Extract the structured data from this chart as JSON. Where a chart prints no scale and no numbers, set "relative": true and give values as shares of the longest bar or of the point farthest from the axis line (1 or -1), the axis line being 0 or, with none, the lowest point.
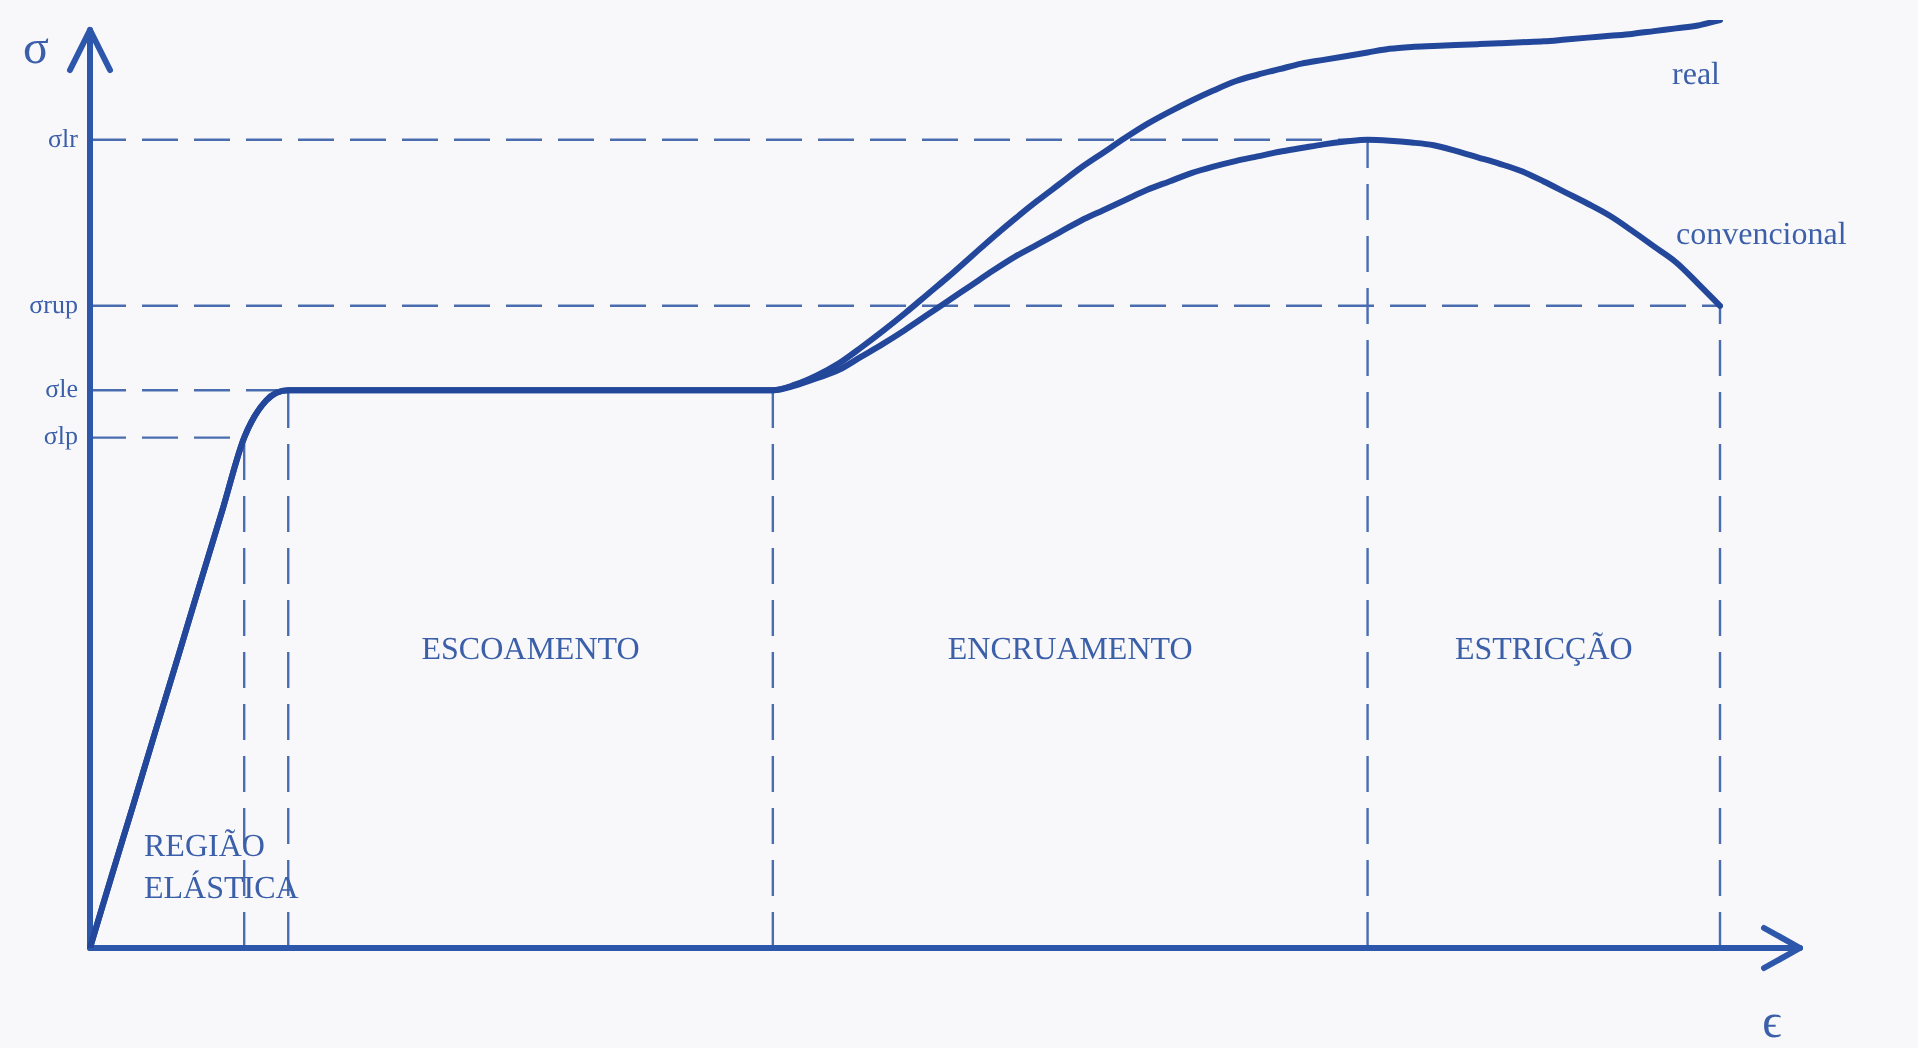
{
  "chart_data": {
    "type": "line",
    "xlabel": "ϵ",
    "ylabel": "σ",
    "relative": true,
    "legend": false,
    "marker": "none",
    "line_style": "solid",
    "categories": [
      null,
      null,
      null,
      null,
      null,
      null,
      null,
      null,
      null,
      null,
      null,
      null,
      null,
      null,
      null,
      null,
      null,
      null,
      null,
      null,
      null,
      null,
      null,
      null,
      null,
      null,
      null,
      null,
      null,
      null,
      null,
      null,
      null,
      null,
      null,
      null,
      null,
      null,
      null,
      null,
      null,
      null,
      null,
      null,
      null,
      null,
      null,
      null,
      null,
      null,
      null,
      null,
      null,
      null,
      null,
      null,
      null,
      null,
      null,
      null,
      null,
      null,
      null,
      null,
      null,
      null,
      null,
      null,
      null,
      null,
      null,
      null,
      null,
      null,
      null
    ],
    "series": [
      {
        "name": "real",
        "color": "#23479a",
        "values": [
          0,
          0.079,
          0.157,
          0.236,
          0.314,
          0.393,
          0.471,
          0.55,
          0.59,
          0.601,
          0.601,
          0.601,
          0.601,
          0.601,
          0.601,
          0.601,
          0.601,
          0.601,
          0.601,
          0.601,
          0.601,
          0.601,
          0.601,
          0.601,
          0.601,
          0.601,
          0.601,
          0.601,
          0.601,
          0.601,
          0.601,
          0.601,
          0.607,
          0.617,
          0.63,
          0.647,
          0.665,
          0.684,
          0.704,
          0.724,
          0.745,
          0.766,
          0.786,
          0.805,
          0.823,
          0.841,
          0.857,
          0.873,
          0.888,
          0.901,
          0.913,
          0.924,
          0.934,
          0.941,
          0.947,
          0.953,
          0.957,
          0.961,
          0.965,
          0.969,
          0.971,
          0.972,
          0.973,
          0.974,
          0.975,
          0.976,
          0.977,
          0.979,
          0.981,
          0.983,
          0.985,
          0.988,
          0.991,
          0.994,
          1
        ]
      },
      {
        "name": "convencional",
        "color": "#23479a",
        "values": [
          0,
          0.079,
          0.157,
          0.236,
          0.314,
          0.393,
          0.471,
          0.55,
          0.59,
          0.601,
          0.601,
          0.601,
          0.601,
          0.601,
          0.601,
          0.601,
          0.601,
          0.601,
          0.601,
          0.601,
          0.601,
          0.601,
          0.601,
          0.601,
          0.601,
          0.601,
          0.601,
          0.601,
          0.601,
          0.601,
          0.601,
          0.601,
          0.606,
          0.614,
          0.623,
          0.637,
          0.651,
          0.666,
          0.682,
          0.698,
          0.714,
          0.73,
          0.745,
          0.758,
          0.771,
          0.784,
          0.795,
          0.806,
          0.817,
          0.826,
          0.835,
          0.842,
          0.848,
          0.853,
          0.858,
          0.862,
          0.866,
          0.869,
          0.871,
          0.87,
          0.868,
          0.865,
          0.859,
          0.852,
          0.845,
          0.837,
          0.826,
          0.814,
          0.802,
          0.789,
          0.773,
          0.756,
          0.739,
          0.716,
          0.692
        ]
      }
    ],
    "ref_lines": [
      {
        "axis": "y",
        "value": 0.871,
        "label": "σlr",
        "color": "#4a6db0",
        "line_style": "dashed"
      },
      {
        "axis": "y",
        "value": 0.692,
        "label": "σrup",
        "color": "#4a6db0",
        "line_style": "dashed"
      },
      {
        "axis": "y",
        "value": 0.601,
        "label": "σle",
        "color": "#4a6db0",
        "line_style": "dashed"
      },
      {
        "axis": "y",
        "value": 0.55,
        "label": "σlp",
        "color": "#4a6db0",
        "line_style": "dashed"
      }
    ],
    "annotations": [
      "REGIÃO ELÁSTICA",
      "ESCOAMENTO",
      "ENCRUAMENTO",
      "ESTRICÇÃO"
    ]
  }
}
